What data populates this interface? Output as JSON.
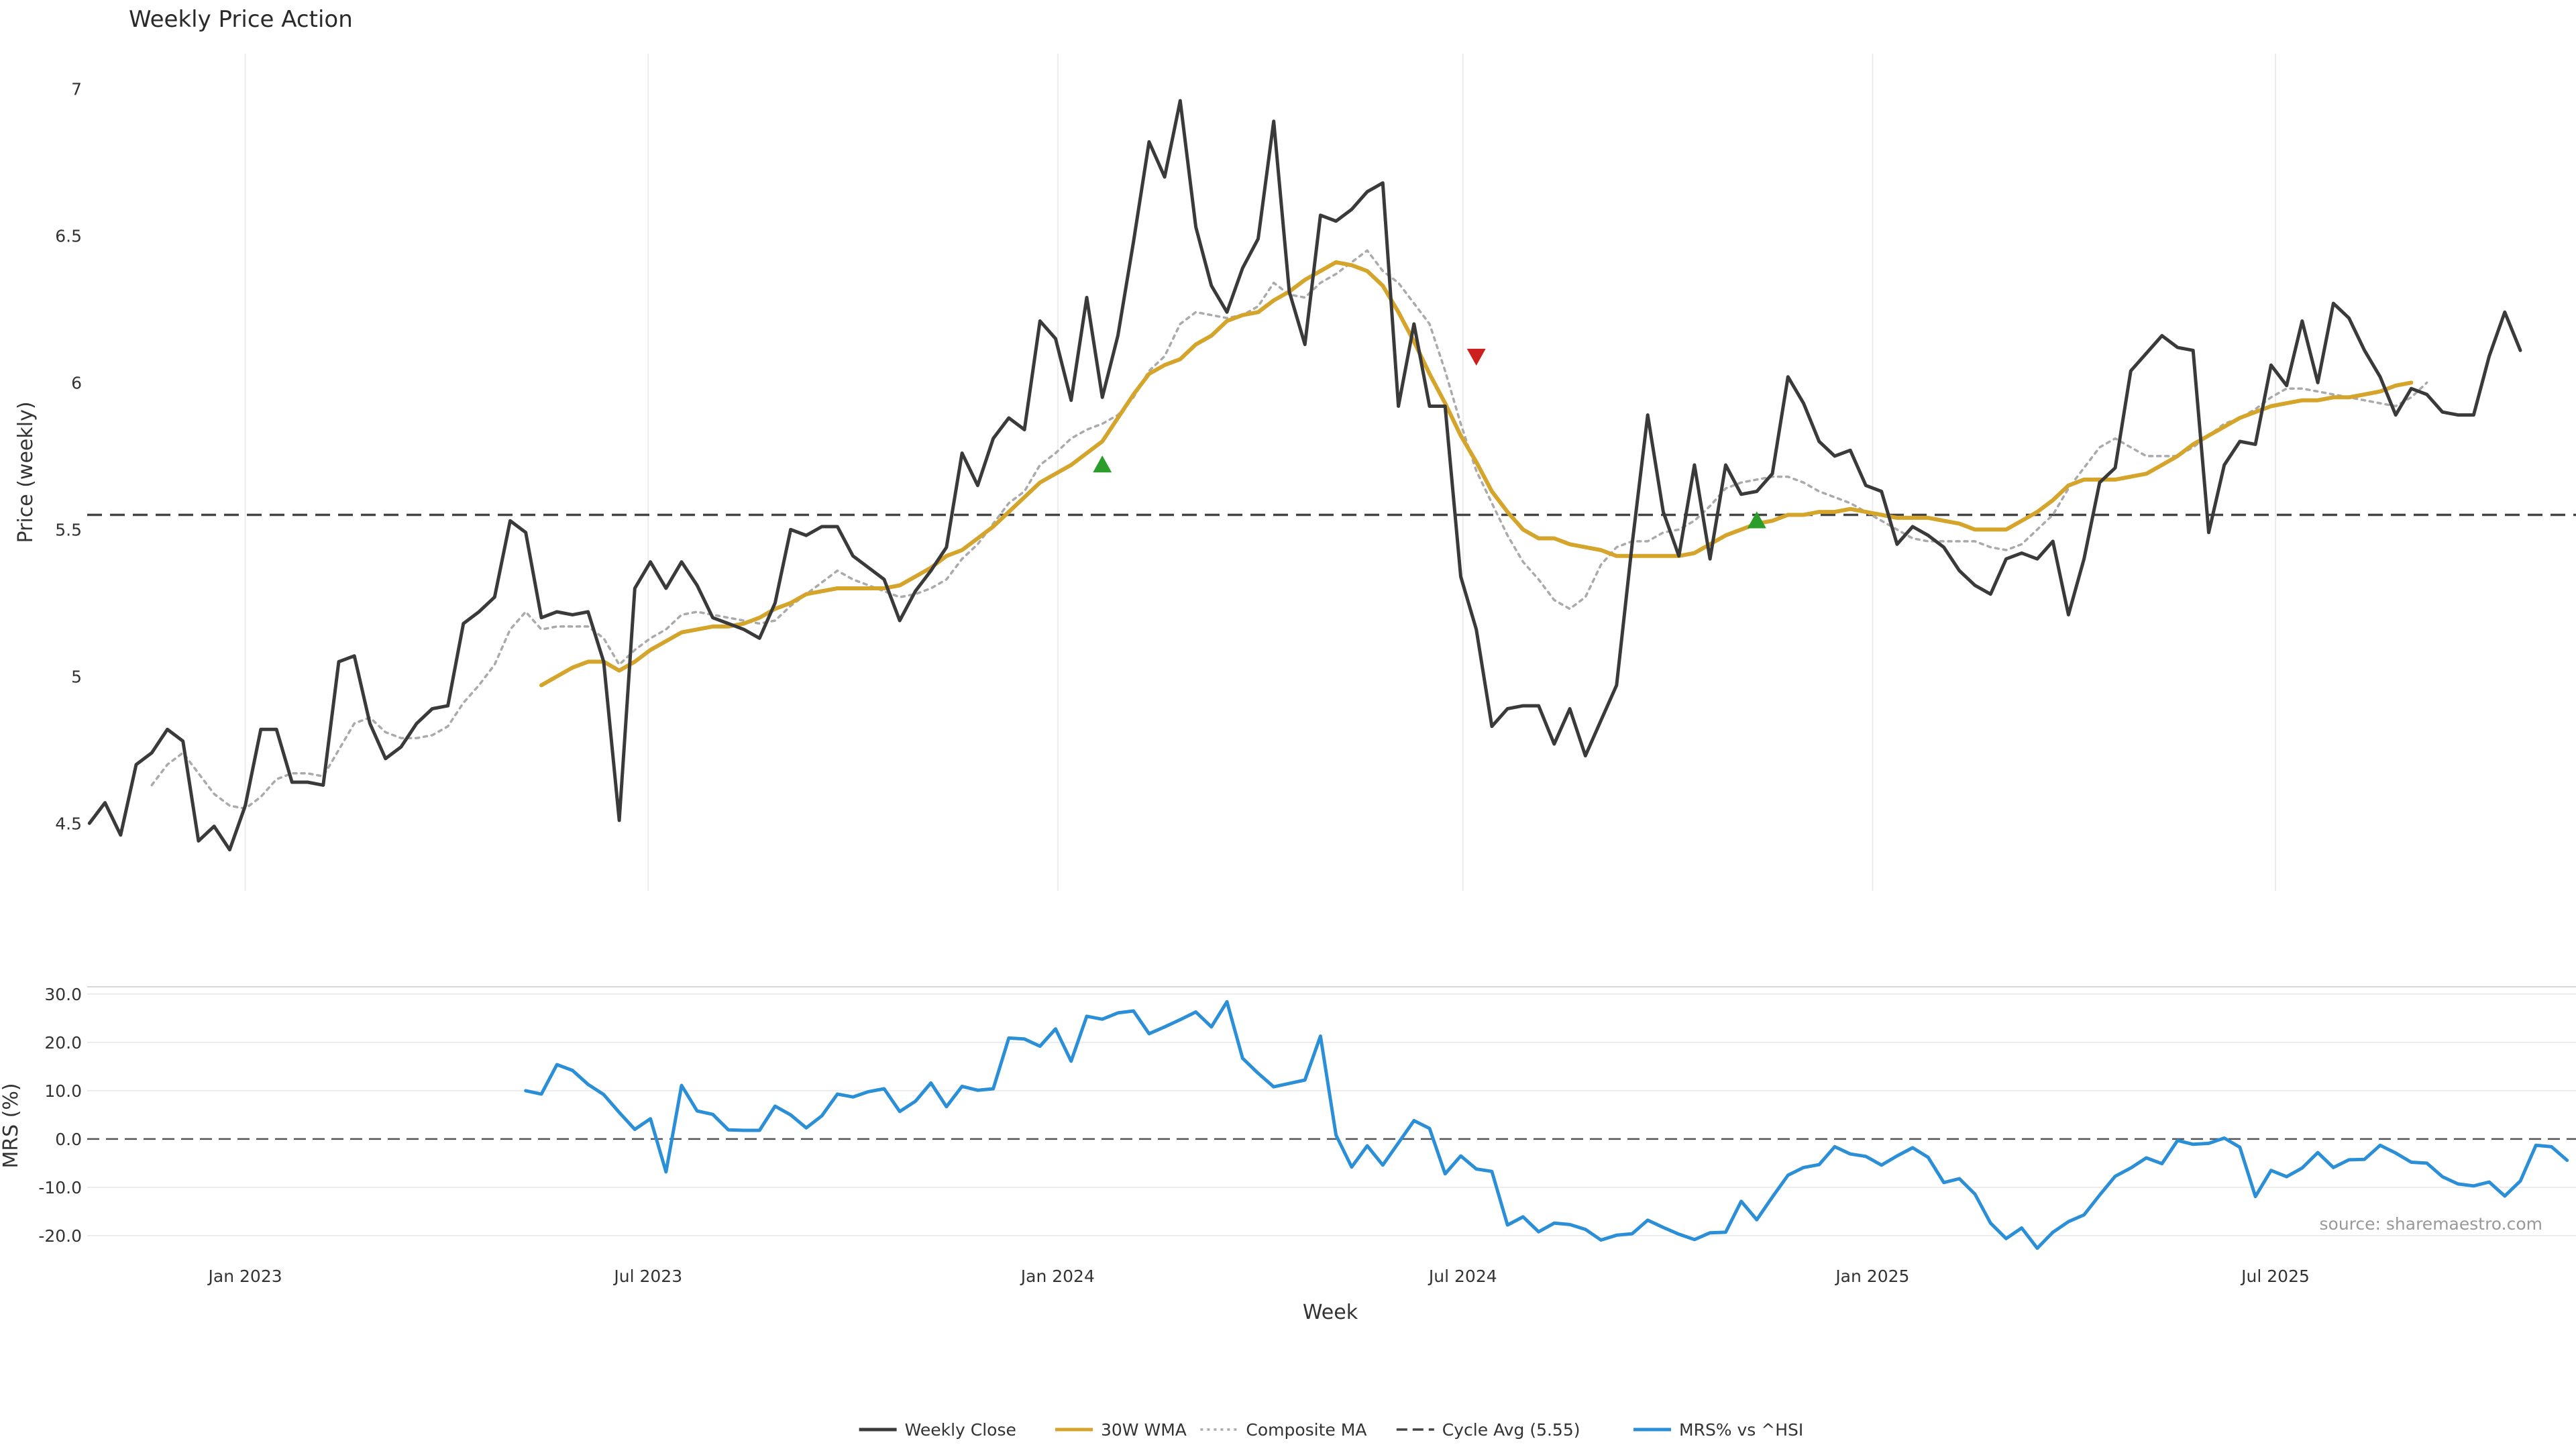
{
  "chart_data": [
    {
      "type": "line",
      "title": "Weekly Price Action",
      "xlabel": "",
      "ylabel": "Price (weekly)",
      "ylim": [
        4.27,
        7.12
      ],
      "yticks": [
        4.5,
        5,
        5.5,
        6,
        6.5,
        7
      ],
      "ytick_labels": [
        "4.5",
        "5",
        "5.5",
        "6",
        "6.5",
        "7"
      ],
      "xlim": [
        "2022-10-22",
        "2025-11-13"
      ],
      "grid": true,
      "x_start": "2022-10-23",
      "x_step_days": 7,
      "series": [
        {
          "name": "Weekly Close",
          "color": "#3a3a3a",
          "style": "solid",
          "values": [
            4.5,
            4.57,
            4.46,
            4.7,
            4.74,
            4.82,
            4.78,
            4.44,
            4.49,
            4.41,
            4.56,
            4.82,
            4.82,
            4.64,
            4.64,
            4.63,
            5.05,
            5.07,
            4.84,
            4.72,
            4.76,
            4.84,
            4.89,
            4.9,
            5.18,
            5.22,
            5.27,
            5.53,
            5.49,
            5.2,
            5.22,
            5.21,
            5.22,
            5.05,
            4.51,
            5.3,
            5.39,
            5.3,
            5.39,
            5.31,
            5.2,
            5.18,
            5.16,
            5.13,
            5.25,
            5.5,
            5.48,
            5.51,
            5.51,
            5.41,
            5.37,
            5.33,
            5.19,
            5.29,
            5.36,
            5.44,
            5.76,
            5.65,
            5.81,
            5.88,
            5.84,
            6.21,
            6.15,
            5.94,
            6.29,
            5.95,
            6.16,
            6.48,
            6.82,
            6.7,
            6.96,
            6.53,
            6.33,
            6.24,
            6.39,
            6.49,
            6.89,
            6.31,
            6.13,
            6.57,
            6.55,
            6.59,
            6.65,
            6.68,
            5.92,
            6.2,
            5.92,
            5.92,
            5.34,
            5.16,
            4.83,
            4.89,
            4.9,
            4.9,
            4.77,
            4.89,
            4.73,
            4.85,
            4.97,
            5.45,
            5.89,
            5.56,
            5.41,
            5.72,
            5.4,
            5.72,
            5.62,
            5.63,
            5.69,
            6.02,
            5.93,
            5.8,
            5.75,
            5.77,
            5.65,
            5.63,
            5.45,
            5.51,
            5.48,
            5.44,
            5.36,
            5.31,
            5.28,
            5.4,
            5.42,
            5.4,
            5.46,
            5.21,
            5.4,
            5.66,
            5.71,
            6.04,
            6.1,
            6.16,
            6.12,
            6.11,
            5.49,
            5.72,
            5.8,
            5.79,
            6.06,
            5.99,
            6.21,
            6.0,
            6.27,
            6.22,
            6.11,
            6.02,
            5.89,
            5.98,
            5.96,
            5.9,
            5.89,
            5.89,
            6.09,
            6.24,
            6.11
          ]
        },
        {
          "name": "30W WMA",
          "color": "#d4a52a",
          "style": "solid",
          "start_index": 29,
          "values": [
            4.97,
            5.0,
            5.03,
            5.05,
            5.05,
            5.02,
            5.05,
            5.09,
            5.12,
            5.15,
            5.16,
            5.17,
            5.17,
            5.18,
            5.2,
            5.23,
            5.25,
            5.28,
            5.29,
            5.3,
            5.3,
            5.3,
            5.3,
            5.31,
            5.34,
            5.37,
            5.41,
            5.43,
            5.47,
            5.51,
            5.56,
            5.61,
            5.66,
            5.69,
            5.72,
            5.76,
            5.8,
            5.88,
            5.96,
            6.03,
            6.06,
            6.08,
            6.13,
            6.16,
            6.21,
            6.23,
            6.24,
            6.28,
            6.31,
            6.35,
            6.38,
            6.41,
            6.4,
            6.38,
            6.33,
            6.24,
            6.14,
            6.03,
            5.93,
            5.82,
            5.73,
            5.63,
            5.56,
            5.5,
            5.47,
            5.47,
            5.45,
            5.44,
            5.43,
            5.41,
            5.41,
            5.41,
            5.41,
            5.41,
            5.42,
            5.45,
            5.48,
            5.5,
            5.52,
            5.53,
            5.55,
            5.55,
            5.56,
            5.56,
            5.57,
            5.56,
            5.55,
            5.54,
            5.54,
            5.54,
            5.53,
            5.52,
            5.5,
            5.5,
            5.5,
            5.53,
            5.56,
            5.6,
            5.65,
            5.67,
            5.67,
            5.67,
            5.68,
            5.69,
            5.72,
            5.75,
            5.79,
            5.82,
            5.85,
            5.88,
            5.9,
            5.92,
            5.93,
            5.94,
            5.94,
            5.95,
            5.95,
            5.96,
            5.97,
            5.99,
            6.0
          ]
        },
        {
          "name": "Composite MA",
          "color": "#aaaaaa",
          "style": "dotted",
          "start_index": 4,
          "values": [
            4.63,
            4.7,
            4.74,
            4.67,
            4.6,
            4.56,
            4.55,
            4.59,
            4.65,
            4.67,
            4.67,
            4.66,
            4.75,
            4.84,
            4.86,
            4.81,
            4.79,
            4.79,
            4.8,
            4.83,
            4.91,
            4.97,
            5.04,
            5.16,
            5.22,
            5.16,
            5.17,
            5.17,
            5.17,
            5.13,
            5.04,
            5.09,
            5.13,
            5.16,
            5.21,
            5.22,
            5.21,
            5.2,
            5.19,
            5.18,
            5.19,
            5.24,
            5.28,
            5.32,
            5.36,
            5.33,
            5.31,
            5.29,
            5.27,
            5.28,
            5.3,
            5.33,
            5.4,
            5.45,
            5.52,
            5.59,
            5.63,
            5.72,
            5.76,
            5.81,
            5.84,
            5.86,
            5.89,
            5.95,
            6.04,
            6.09,
            6.2,
            6.24,
            6.23,
            6.22,
            6.23,
            6.26,
            6.34,
            6.3,
            6.29,
            6.34,
            6.37,
            6.41,
            6.45,
            6.38,
            6.34,
            6.27,
            6.2,
            6.04,
            5.86,
            5.7,
            5.59,
            5.48,
            5.39,
            5.33,
            5.26,
            5.23,
            5.27,
            5.38,
            5.44,
            5.46,
            5.46,
            5.49,
            5.5,
            5.53,
            5.58,
            5.64,
            5.66,
            5.67,
            5.68,
            5.68,
            5.66,
            5.63,
            5.61,
            5.59,
            5.56,
            5.53,
            5.5,
            5.47,
            5.46,
            5.46,
            5.46,
            5.46,
            5.44,
            5.43,
            5.45,
            5.5,
            5.55,
            5.64,
            5.71,
            5.78,
            5.81,
            5.78,
            5.75,
            5.75,
            5.75,
            5.78,
            5.82,
            5.86,
            5.88,
            5.91,
            5.95,
            5.98,
            5.98,
            5.97,
            5.96,
            5.95,
            5.94,
            5.93,
            5.92,
            5.95,
            6.0
          ]
        }
      ],
      "reference_lines": [
        {
          "name": "Cycle Avg (5.55)",
          "value": 5.55,
          "color": "#444444",
          "style": "dashed"
        }
      ],
      "markers": [
        {
          "type": "buy",
          "shape": "triangle-up",
          "color": "#2a9d2a",
          "x": "2024-01-21",
          "y": 5.72
        },
        {
          "type": "sell",
          "shape": "triangle-down",
          "color": "#cc1f1f",
          "x": "2024-07-07",
          "y": 6.09
        },
        {
          "type": "buy",
          "shape": "triangle-up",
          "color": "#2a9d2a",
          "x": "2024-11-10",
          "y": 5.53
        }
      ]
    },
    {
      "type": "line",
      "title": "",
      "xlabel": "Week",
      "ylabel": "MRS (%)",
      "ylim": [
        -22.5,
        31.5
      ],
      "yticks": [
        -20,
        -10,
        0,
        10,
        20,
        30
      ],
      "ytick_labels": [
        "-20.0",
        "-10.0",
        "0.0",
        "10.0",
        "20.0",
        "30.0"
      ],
      "xlim": [
        "2022-10-22",
        "2025-11-13"
      ],
      "grid": true,
      "x_ticks": [
        {
          "date": "2023-01-01",
          "label": "Jan 2023"
        },
        {
          "date": "2023-07-01",
          "label": "Jul 2023"
        },
        {
          "date": "2024-01-01",
          "label": "Jan 2024"
        },
        {
          "date": "2024-07-01",
          "label": "Jul 2024"
        },
        {
          "date": "2025-01-01",
          "label": "Jan 2025"
        },
        {
          "date": "2025-07-01",
          "label": "Jul 2025"
        }
      ],
      "series": [
        {
          "name": "MRS% vs ^HSI",
          "color": "#2b8fd8",
          "style": "solid",
          "x_start": "2023-05-07",
          "x_step_days": 7,
          "values": [
            10.0,
            9.3,
            15.4,
            14.2,
            11.3,
            9.2,
            5.5,
            2.0,
            4.2,
            -6.8,
            11.1,
            5.8,
            5.1,
            1.9,
            1.8,
            1.8,
            6.8,
            5.0,
            2.3,
            4.8,
            9.3,
            8.7,
            9.8,
            10.4,
            5.7,
            7.8,
            11.6,
            6.7,
            10.9,
            10.1,
            10.4,
            20.9,
            20.7,
            19.2,
            22.8,
            16.1,
            25.4,
            24.8,
            26.1,
            26.5,
            21.8,
            23.2,
            24.7,
            26.3,
            23.2,
            28.4,
            16.7,
            13.6,
            10.8,
            11.5,
            12.2,
            21.3,
            0.8,
            -5.8,
            -1.4,
            -5.4,
            -0.8,
            3.8,
            2.2,
            -7.2,
            -3.5,
            -6.2,
            -6.7,
            -17.8,
            -16.1,
            -19.2,
            -17.4,
            -17.7,
            -18.7,
            -20.9,
            -19.9,
            -19.6,
            -16.8,
            -18.3,
            -19.7,
            -20.8,
            -19.4,
            -19.3,
            -12.9,
            -16.7,
            -12.0,
            -7.5,
            -5.9,
            -5.3,
            -1.6,
            -3.1,
            -3.6,
            -5.4,
            -3.5,
            -1.8,
            -3.8,
            -9.0,
            -8.2,
            -11.4,
            -17.4,
            -20.6,
            -18.4,
            -22.6,
            -19.3,
            -17.1,
            -15.7,
            -11.6,
            -7.7,
            -6.0,
            -3.9,
            -5.1,
            -0.3,
            -1.1,
            -0.9,
            0.2,
            -1.7,
            -11.9,
            -6.5,
            -7.8,
            -6.0,
            -2.8,
            -5.9,
            -4.3,
            -4.2,
            -1.3,
            -2.9,
            -4.8,
            -5.0,
            -7.8,
            -9.3,
            -9.7,
            -8.9,
            -11.8,
            -8.7,
            -1.3,
            -1.6,
            -4.4
          ]
        }
      ],
      "reference_lines": [
        {
          "value": 0,
          "color": "#555555",
          "style": "dashed"
        }
      ],
      "annotations": [
        {
          "text": "source: sharemaestro.com",
          "position": "bottom-right"
        }
      ]
    }
  ],
  "legend": {
    "placement": "bottom-center",
    "items": [
      {
        "label": "Weekly Close",
        "color": "#3a3a3a",
        "style": "solid"
      },
      {
        "label": "30W WMA",
        "color": "#d4a52a",
        "style": "solid"
      },
      {
        "label": "Composite MA",
        "color": "#aaaaaa",
        "style": "dotted"
      },
      {
        "label": "Cycle Avg (5.55)",
        "color": "#444444",
        "style": "dashed"
      },
      {
        "label": "MRS% vs ^HSI",
        "color": "#2b8fd8",
        "style": "solid"
      }
    ]
  }
}
